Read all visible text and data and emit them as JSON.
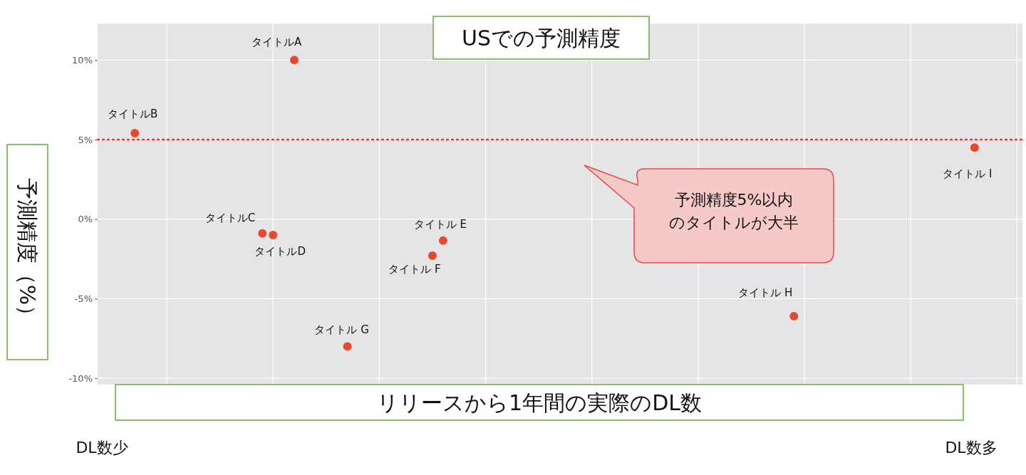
{
  "chart_data": {
    "type": "scatter",
    "title": "USでの予測精度",
    "xlabel": "リリースから1年間の実際のDL数",
    "ylabel": "予測精度（%）",
    "categories": [
      null,
      null,
      null,
      null,
      null,
      null,
      null,
      null,
      null,
      null,
      null,
      null,
      null,
      null,
      null,
      null,
      null,
      null,
      null,
      null,
      null,
      null,
      null,
      null,
      null,
      null,
      null,
      null,
      null,
      null,
      null,
      null,
      null,
      null,
      null,
      null,
      null,
      null,
      null,
      null,
      null,
      null,
      null,
      null,
      null,
      null,
      null,
      null,
      null,
      null,
      null,
      null,
      null,
      null,
      null,
      null,
      null,
      null,
      null,
      null,
      null,
      null,
      null,
      null,
      null,
      null,
      null,
      null,
      null,
      null,
      null,
      null,
      null,
      null,
      null,
      null,
      null,
      null,
      null,
      null,
      null,
      null,
      null,
      null,
      null,
      null,
      null
    ],
    "series": [
      {
        "color": "#e8482f",
        "values": [
          null,
          null,
          null,
          5.4,
          null,
          null,
          null,
          null,
          null,
          null,
          null,
          null,
          null,
          null,
          null,
          -0.9,
          -1.0,
          null,
          10,
          null,
          null,
          null,
          null,
          -8.0,
          null,
          null,
          null,
          null,
          null,
          null,
          null,
          -2.3,
          -1.35,
          null,
          null,
          null,
          null,
          null,
          null,
          null,
          null,
          null,
          null,
          null,
          null,
          null,
          null,
          null,
          null,
          null,
          null,
          null,
          null,
          null,
          null,
          null,
          null,
          null,
          null,
          null,
          null,
          null,
          null,
          null,
          null,
          -6.1,
          null,
          null,
          null,
          null,
          null,
          null,
          null,
          null,
          null,
          null,
          null,
          null,
          null,
          null,
          null,
          null,
          4.5,
          null,
          null,
          null,
          null
        ]
      }
    ],
    "ylim": [
      -10.4,
      12.3
    ],
    "yticks": [
      {
        "value": -10,
        "label": "-10%"
      },
      {
        "value": -5,
        "label": "-5%"
      },
      {
        "value": 0,
        "label": "0%"
      },
      {
        "value": 5,
        "label": "5%"
      },
      {
        "value": 10,
        "label": "10%"
      }
    ],
    "grid": true,
    "marker": "circle",
    "ref_lines": [
      {
        "axis": "y",
        "value": 5,
        "color": "#ff3333",
        "line_style": "dotted"
      }
    ],
    "annotations": [
      "タイトルB",
      "タイトルC",
      "タイトルD",
      "タイトルA",
      "タイトル G",
      "タイトル F",
      "タイトル E",
      "タイトル H",
      "タイトル I",
      "予測精度5%以内のタイトルが大半",
      "DL数少",
      "DL数多"
    ]
  }
}
